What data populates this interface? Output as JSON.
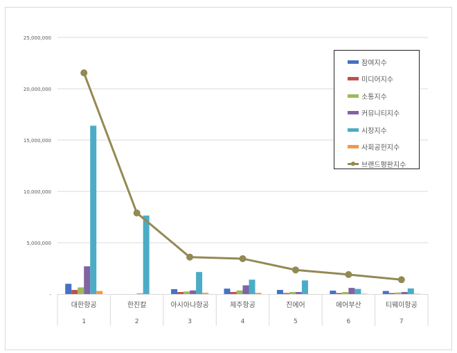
{
  "chart_data": {
    "type": "bar",
    "title": "",
    "xlabel": "",
    "ylabel": "",
    "ylim": [
      0,
      25000000
    ],
    "yticks": [
      0,
      5000000,
      10000000,
      15000000,
      20000000,
      25000000
    ],
    "ytick_labels": [
      "-",
      "5,000,000",
      "10,000,000",
      "15,000,000",
      "20,000,000",
      "25,000,000"
    ],
    "grid": true,
    "legend_position": "right-inside",
    "categories": [
      "대한항공",
      "한진칼",
      "아시아나항공",
      "제주항공",
      "진에어",
      "에어부산",
      "티웨이항공"
    ],
    "category_ranks": [
      "1",
      "2",
      "3",
      "4",
      "5",
      "6",
      "7"
    ],
    "series": [
      {
        "name": "참여지수",
        "type": "bar",
        "color": "#4472C4",
        "values": [
          1000000,
          0,
          480000,
          530000,
          400000,
          330000,
          300000
        ]
      },
      {
        "name": "미디어지수",
        "type": "bar",
        "color": "#C0504D",
        "values": [
          400000,
          0,
          200000,
          200000,
          100000,
          100000,
          100000
        ]
      },
      {
        "name": "소통지수",
        "type": "bar",
        "color": "#9BBB59",
        "values": [
          650000,
          0,
          250000,
          350000,
          200000,
          200000,
          150000
        ]
      },
      {
        "name": "커뮤니티지수",
        "type": "bar",
        "color": "#8064A2",
        "values": [
          2700000,
          50000,
          350000,
          850000,
          200000,
          600000,
          200000
        ]
      },
      {
        "name": "시장지수",
        "type": "bar",
        "color": "#4BACC6",
        "values": [
          16400000,
          7650000,
          2150000,
          1400000,
          1330000,
          500000,
          550000
        ]
      },
      {
        "name": "사회공헌지수",
        "type": "bar",
        "color": "#F79646",
        "values": [
          300000,
          0,
          120000,
          120000,
          0,
          30000,
          30000
        ]
      },
      {
        "name": "브랜드평판지수",
        "type": "line",
        "color": "#938953",
        "values": [
          21550000,
          7900000,
          3600000,
          3450000,
          2350000,
          1900000,
          1400000
        ]
      }
    ]
  }
}
